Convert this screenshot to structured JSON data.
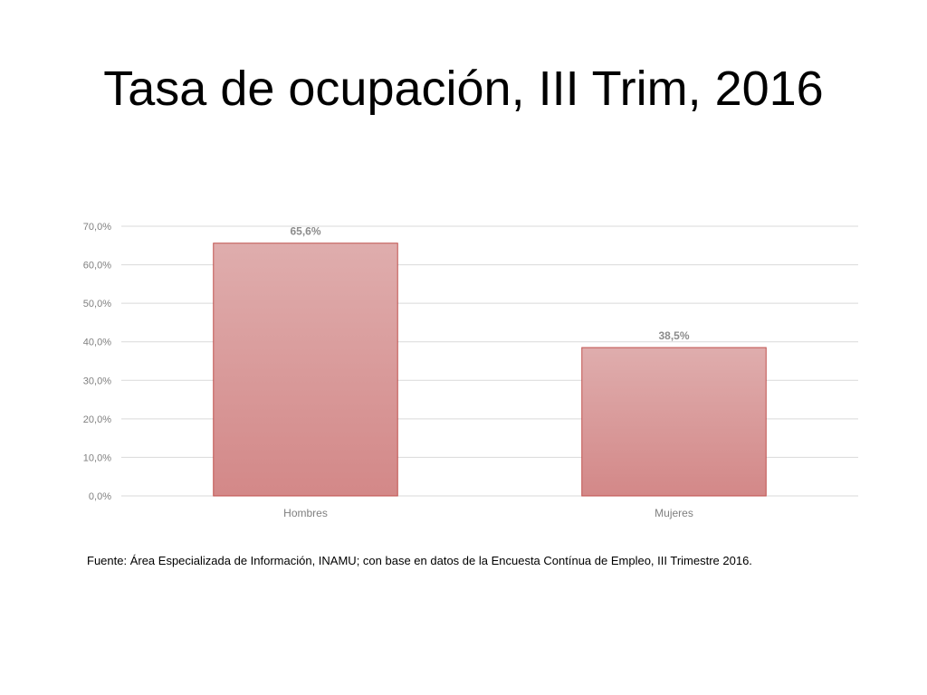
{
  "chart_data": {
    "type": "bar",
    "title": "Tasa de ocupación, III Trim, 2016",
    "categories": [
      "Hombres",
      "Mujeres"
    ],
    "values": [
      65.6,
      38.5
    ],
    "data_labels": [
      "65,6%",
      "38,5%"
    ],
    "ylim": [
      0,
      70
    ],
    "yticks": [
      0,
      10,
      20,
      30,
      40,
      50,
      60,
      70
    ],
    "ytick_labels": [
      "0,0%",
      "10,0%",
      "20,0%",
      "30,0%",
      "40,0%",
      "50,0%",
      "60,0%",
      "70,0%"
    ],
    "grid": true,
    "legend": "none",
    "colors": {
      "bar_top": "#dfadad",
      "bar_bottom": "#d38888",
      "bar_border": "#c0504d",
      "gridline": "#d9d9d9"
    }
  },
  "source": "Fuente: Área Especializada de Información, INAMU; con base en datos de la Encuesta Contínua de Empleo, III Trimestre 2016."
}
